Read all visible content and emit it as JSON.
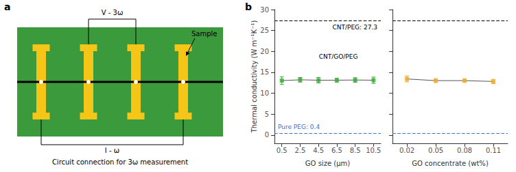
{
  "chart_data": [
    {
      "type": "diagram",
      "title": "Circuit connection for 3ω measurement",
      "annotations": [
        "a",
        "V - 3ω",
        "I - ω",
        "Sample"
      ],
      "colors": [
        "#3a9a3c",
        "#f5c518"
      ]
    },
    {
      "type": "line",
      "x_label": "GO size (μm)",
      "y_label": "Thermal conductivity (W m⁻¹K⁻¹)",
      "x": [
        0.5,
        2.5,
        4.5,
        6.5,
        8.5,
        10.5
      ],
      "series": [
        {
          "type": "line",
          "color": "#555555",
          "line_style": "solid",
          "values": [
            13.0,
            13.2,
            13.1,
            13.1,
            13.15,
            13.1
          ]
        },
        {
          "type": "scatter",
          "color": "#3aaa35",
          "marker": "square",
          "values": [
            13.0,
            13.2,
            13.1,
            13.1,
            13.15,
            13.1
          ],
          "errors": [
            0.9,
            0.55,
            0.65,
            0.45,
            0.55,
            0.75
          ]
        }
      ],
      "reference_lines": [
        {
          "value": 27.3,
          "color": "#000000",
          "line_style": "dashed",
          "label": "CNT/PEG: 27.3"
        },
        {
          "value": 0.4,
          "color": "#4472c4",
          "line_style": "dashed",
          "label": "Pure PEG: 0.4"
        }
      ],
      "annotations": [
        "b",
        "CNT/GO/PEG"
      ],
      "xlim": [
        -0.3,
        11.3
      ],
      "xticks": [
        0.5,
        2.5,
        4.5,
        6.5,
        8.5,
        10.5
      ],
      "ylim": [
        -2,
        30
      ],
      "yticks": [
        0,
        5,
        10,
        15,
        20,
        25,
        30
      ],
      "grid": false
    },
    {
      "type": "line",
      "x_label": "GO concentrate (wt%)",
      "x": [
        0.02,
        0.05,
        0.08,
        0.11
      ],
      "series": [
        {
          "type": "line",
          "color": "#555555",
          "line_style": "solid",
          "values": [
            13.4,
            13.0,
            13.0,
            12.8
          ]
        },
        {
          "type": "scatter",
          "color": "#f5a623",
          "marker": "square",
          "values": [
            13.4,
            13.0,
            13.0,
            12.8
          ],
          "errors": [
            0.7,
            0.45,
            0.4,
            0.5
          ]
        }
      ],
      "reference_lines": [
        {
          "value": 27.3,
          "color": "#000000",
          "line_style": "dashed"
        },
        {
          "value": 0.4,
          "color": "#4472c4",
          "line_style": "dashed"
        }
      ],
      "xlim": [
        0.005,
        0.125
      ],
      "xticks": [
        0.02,
        0.05,
        0.08,
        0.11
      ],
      "ylim": [
        -2,
        30
      ],
      "yticks": [
        0,
        5,
        10,
        15,
        20,
        25,
        30
      ],
      "grid": false,
      "tick_labels": "x"
    }
  ]
}
